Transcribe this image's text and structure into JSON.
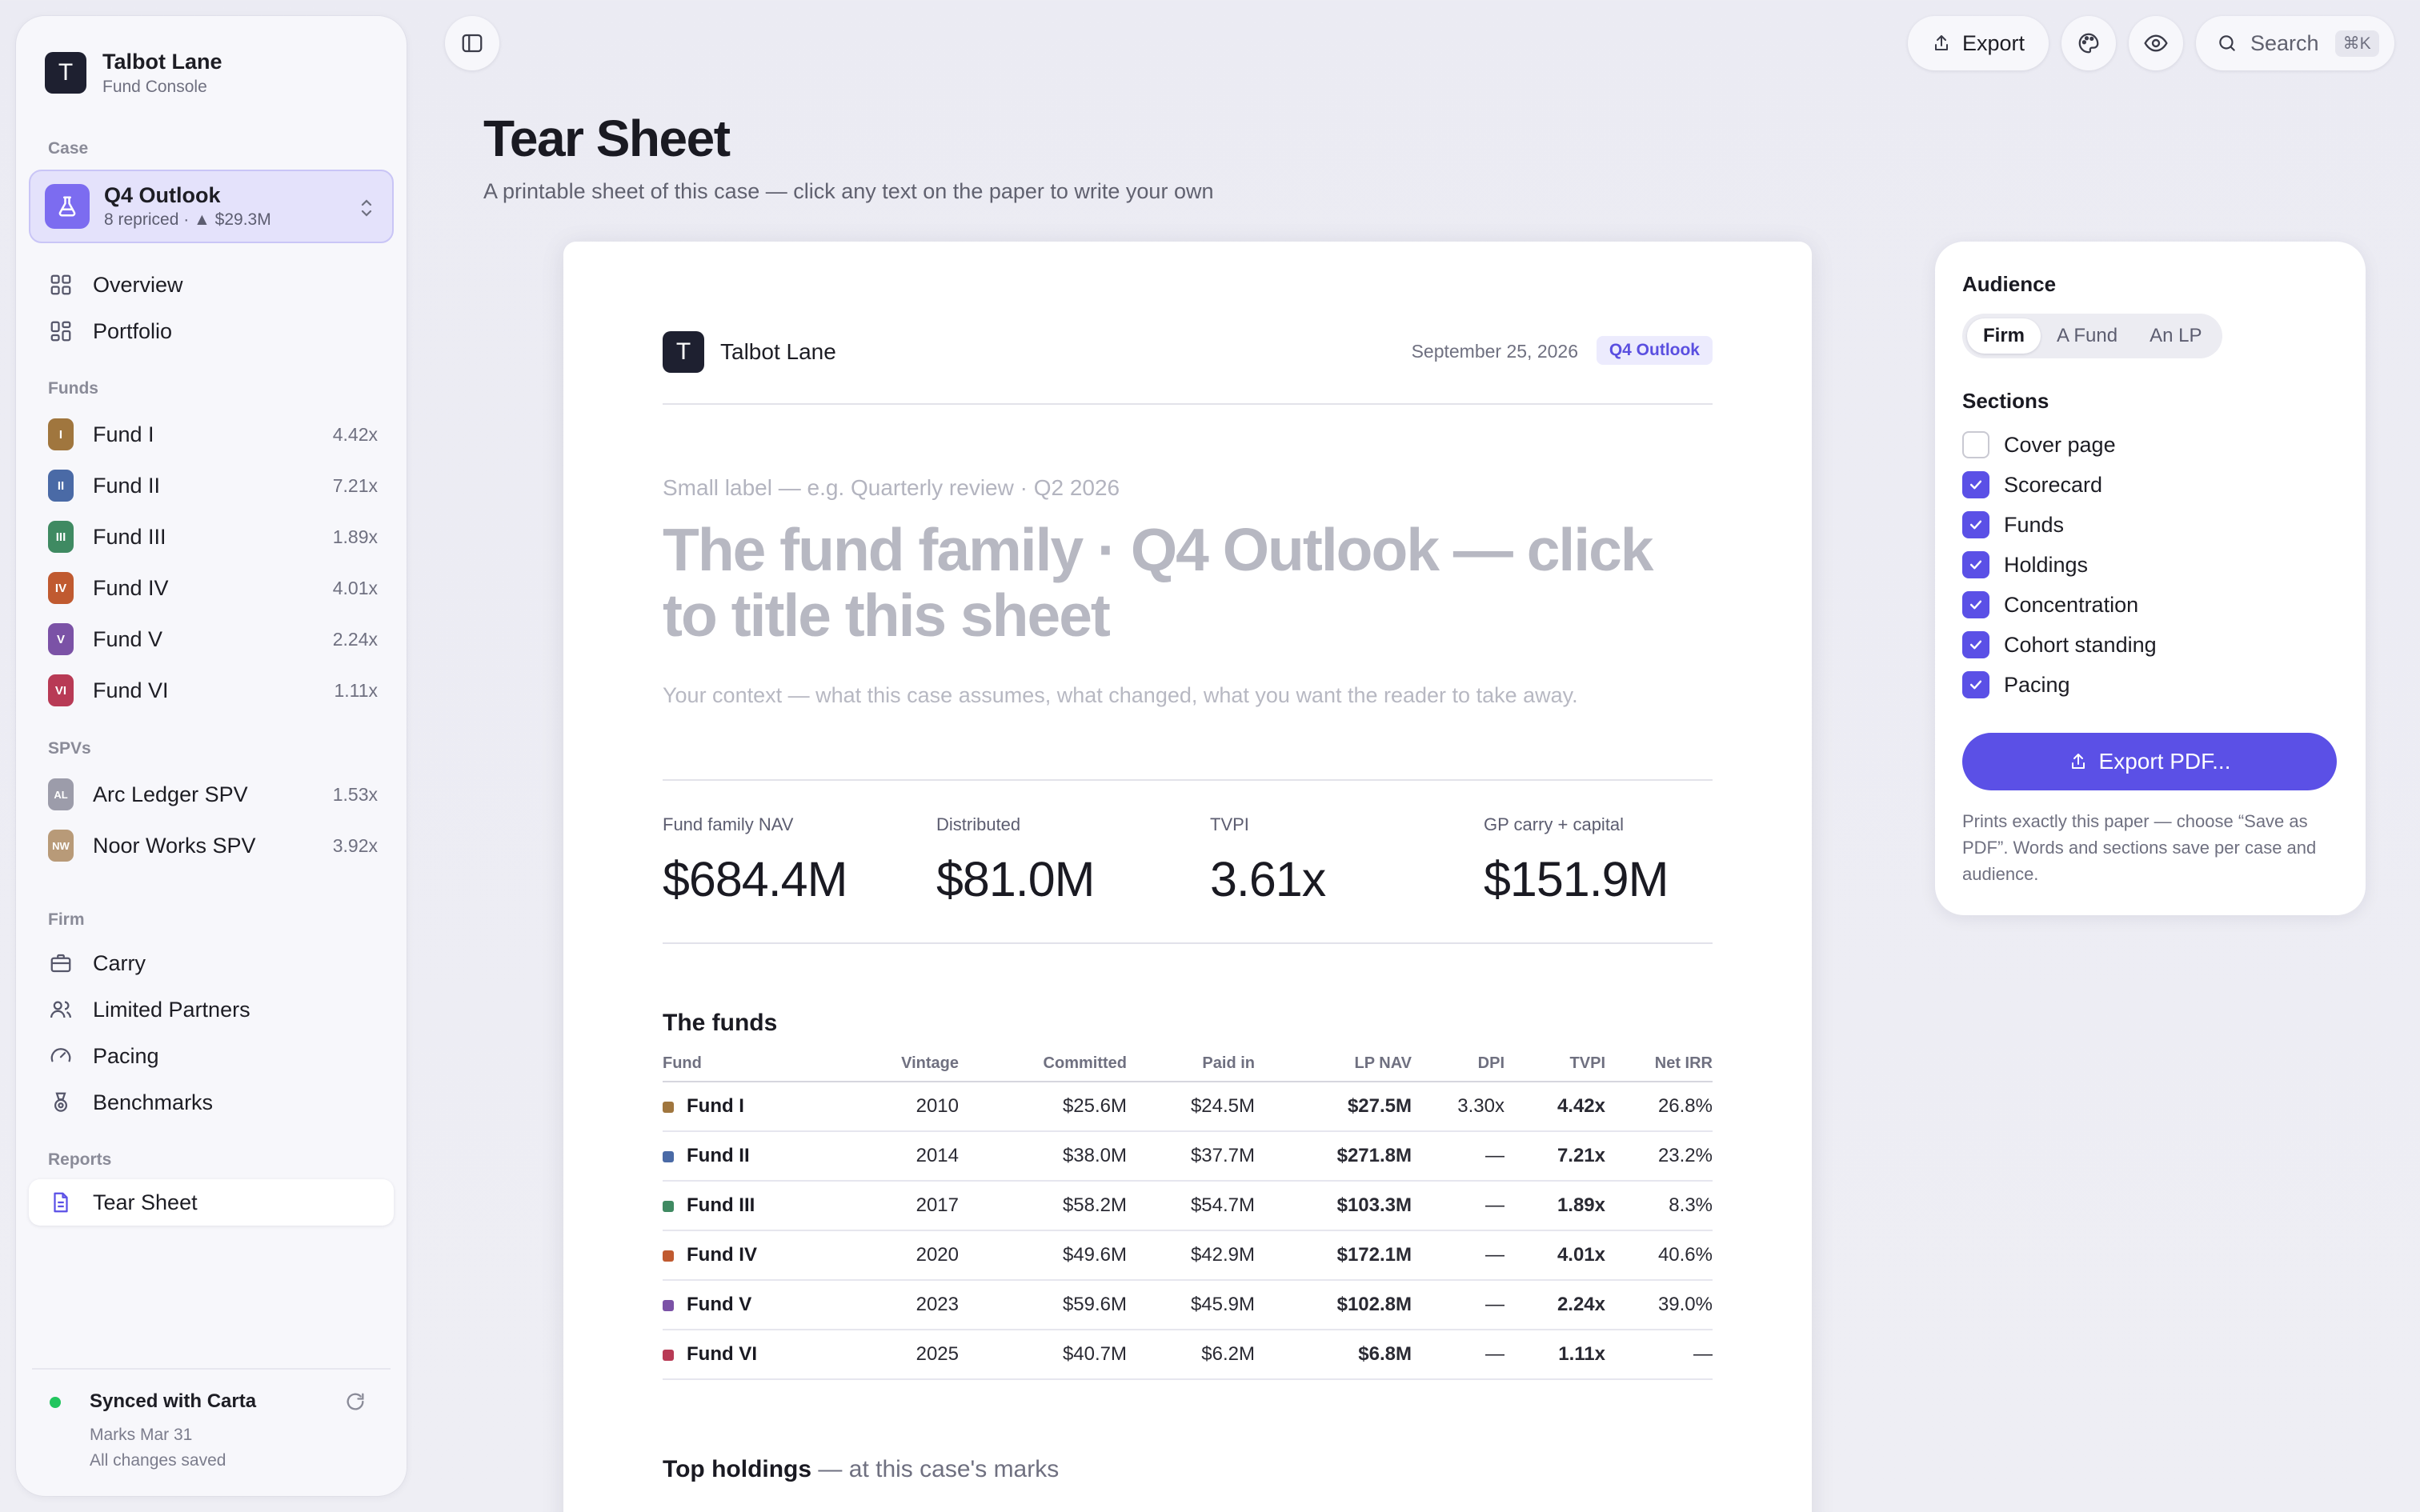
{
  "brand": {
    "name": "Talbot Lane",
    "subtitle": "Fund Console",
    "logo_letter": "T"
  },
  "sidebar": {
    "case_label": "Case",
    "case": {
      "title": "Q4 Outlook",
      "subtitle": "8 repriced · ▲ $29.3M"
    },
    "top_nav": [
      {
        "label": "Overview",
        "icon": "grid-icon"
      },
      {
        "label": "Portfolio",
        "icon": "portfolio-icon"
      }
    ],
    "funds_label": "Funds",
    "funds": [
      {
        "badge": "I",
        "label": "Fund I",
        "value": "4.42x",
        "color": "#a0763e"
      },
      {
        "badge": "II",
        "label": "Fund II",
        "value": "7.21x",
        "color": "#4a6aa6"
      },
      {
        "badge": "III",
        "label": "Fund III",
        "value": "1.89x",
        "color": "#3f8a62"
      },
      {
        "badge": "IV",
        "label": "Fund IV",
        "value": "4.01x",
        "color": "#c05a30"
      },
      {
        "badge": "V",
        "label": "Fund V",
        "value": "2.24x",
        "color": "#7b52a6"
      },
      {
        "badge": "VI",
        "label": "Fund VI",
        "value": "1.11x",
        "color": "#b83a55"
      }
    ],
    "spvs_label": "SPVs",
    "spvs": [
      {
        "badge": "AL",
        "label": "Arc Ledger SPV",
        "value": "1.53x",
        "color": "#9c9caa"
      },
      {
        "badge": "NW",
        "label": "Noor Works SPV",
        "value": "3.92x",
        "color": "#b89a78"
      }
    ],
    "firm_label": "Firm",
    "firm": [
      {
        "label": "Carry",
        "icon": "briefcase-icon"
      },
      {
        "label": "Limited Partners",
        "icon": "users-icon"
      },
      {
        "label": "Pacing",
        "icon": "gauge-icon"
      },
      {
        "label": "Benchmarks",
        "icon": "medal-icon"
      }
    ],
    "reports_label": "Reports",
    "reports": [
      {
        "label": "Tear Sheet",
        "icon": "document-icon"
      }
    ],
    "sync": {
      "title": "Synced with Carta",
      "line1": "Marks Mar 31",
      "line2": "All changes saved"
    }
  },
  "topbar": {
    "export_label": "Export",
    "search_label": "Search",
    "search_shortcut": "⌘K"
  },
  "page": {
    "title": "Tear Sheet",
    "subtitle": "A printable sheet of this case — click any text on the paper to write your own"
  },
  "paper": {
    "brand": "Talbot Lane",
    "date": "September 25, 2026",
    "tag": "Q4 Outlook",
    "kicker": "Small label — e.g. Quarterly review · Q2 2026",
    "title": "The fund family · Q4 Outlook — click to title this sheet",
    "context": "Your context — what this case assumes, what changed, what you want the reader to take away.",
    "stats": [
      {
        "label": "Fund family NAV",
        "value": "$684.4M"
      },
      {
        "label": "Distributed",
        "value": "$81.0M"
      },
      {
        "label": "TVPI",
        "value": "3.61x"
      },
      {
        "label": "GP carry + capital",
        "value": "$151.9M"
      }
    ],
    "funds_heading": "The funds",
    "table": {
      "columns": [
        "Fund",
        "Vintage",
        "Committed",
        "Paid in",
        "LP NAV",
        "DPI",
        "TVPI",
        "Net IRR"
      ],
      "rows": [
        {
          "fund": "Fund I",
          "color": "#a0763e",
          "vintage": "2010",
          "committed": "$25.6M",
          "paid_in": "$24.5M",
          "lp_nav": "$27.5M",
          "dpi": "3.30x",
          "tvpi": "4.42x",
          "irr": "26.8%"
        },
        {
          "fund": "Fund II",
          "color": "#4a6aa6",
          "vintage": "2014",
          "committed": "$38.0M",
          "paid_in": "$37.7M",
          "lp_nav": "$271.8M",
          "dpi": "—",
          "tvpi": "7.21x",
          "irr": "23.2%"
        },
        {
          "fund": "Fund III",
          "color": "#3f8a62",
          "vintage": "2017",
          "committed": "$58.2M",
          "paid_in": "$54.7M",
          "lp_nav": "$103.3M",
          "dpi": "—",
          "tvpi": "1.89x",
          "irr": "8.3%"
        },
        {
          "fund": "Fund IV",
          "color": "#c05a30",
          "vintage": "2020",
          "committed": "$49.6M",
          "paid_in": "$42.9M",
          "lp_nav": "$172.1M",
          "dpi": "—",
          "tvpi": "4.01x",
          "irr": "40.6%"
        },
        {
          "fund": "Fund V",
          "color": "#7b52a6",
          "vintage": "2023",
          "committed": "$59.6M",
          "paid_in": "$45.9M",
          "lp_nav": "$102.8M",
          "dpi": "—",
          "tvpi": "2.24x",
          "irr": "39.0%"
        },
        {
          "fund": "Fund VI",
          "color": "#b83a55",
          "vintage": "2025",
          "committed": "$40.7M",
          "paid_in": "$6.2M",
          "lp_nav": "$6.8M",
          "dpi": "—",
          "tvpi": "1.11x",
          "irr": "—"
        }
      ]
    },
    "holdings_heading": "Top holdings",
    "holdings_suffix": "— at this case's marks"
  },
  "panel": {
    "audience_label": "Audience",
    "audience_options": [
      "Firm",
      "A Fund",
      "An LP"
    ],
    "audience_selected": "Firm",
    "sections_label": "Sections",
    "sections": [
      {
        "label": "Cover page",
        "checked": false
      },
      {
        "label": "Scorecard",
        "checked": true
      },
      {
        "label": "Funds",
        "checked": true
      },
      {
        "label": "Holdings",
        "checked": true
      },
      {
        "label": "Concentration",
        "checked": true
      },
      {
        "label": "Cohort standing",
        "checked": true
      },
      {
        "label": "Pacing",
        "checked": true
      }
    ],
    "export_pdf_label": "Export PDF...",
    "note": "Prints exactly this paper — choose “Save as PDF”. Words and sections save per case and audience."
  }
}
